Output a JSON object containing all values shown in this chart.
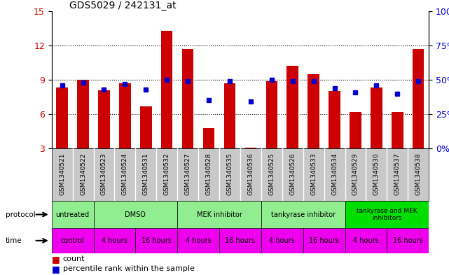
{
  "title": "GDS5029 / 242131_at",
  "samples": [
    "GSM1340521",
    "GSM1340522",
    "GSM1340523",
    "GSM1340524",
    "GSM1340531",
    "GSM1340532",
    "GSM1340527",
    "GSM1340528",
    "GSM1340535",
    "GSM1340536",
    "GSM1340525",
    "GSM1340526",
    "GSM1340533",
    "GSM1340534",
    "GSM1340529",
    "GSM1340530",
    "GSM1340537",
    "GSM1340538"
  ],
  "bar_heights": [
    8.3,
    9.0,
    8.1,
    8.7,
    6.7,
    13.3,
    11.7,
    4.8,
    8.7,
    3.1,
    8.9,
    10.2,
    9.5,
    8.0,
    6.2,
    8.3,
    6.2,
    11.7
  ],
  "blue_dot_percentile": [
    46,
    48,
    43,
    47,
    43,
    50,
    49,
    35,
    49,
    34,
    50,
    49,
    49,
    44,
    41,
    46,
    40,
    49
  ],
  "ylim_left": [
    3,
    15
  ],
  "ylim_right": [
    0,
    100
  ],
  "yticks_left": [
    3,
    6,
    9,
    12,
    15
  ],
  "yticks_right": [
    0,
    25,
    50,
    75,
    100
  ],
  "bar_color": "#CC0000",
  "dot_color": "#0000CC",
  "grid_color": "#000000",
  "protocol_color_light": "#90EE90",
  "protocol_color_dark": "#00DD00",
  "time_color": "#EE00EE",
  "sample_bg_color": "#C8C8C8",
  "tick_label_color_left": "#CC0000",
  "tick_label_color_right": "#0000CC",
  "protocol_data": [
    [
      0,
      1,
      "untreated",
      "#90EE90"
    ],
    [
      1,
      3,
      "DMSO",
      "#90EE90"
    ],
    [
      3,
      5,
      "MEK inhibitor",
      "#90EE90"
    ],
    [
      5,
      7,
      "tankyrase inhibitor",
      "#90EE90"
    ],
    [
      7,
      9,
      "tankyrase and MEK\ninhibitors",
      "#00DD00"
    ]
  ],
  "time_data": [
    [
      0,
      1,
      "control"
    ],
    [
      1,
      2,
      "4 hours"
    ],
    [
      2,
      3,
      "16 hours"
    ],
    [
      3,
      4,
      "4 hours"
    ],
    [
      4,
      5,
      "16 hours"
    ],
    [
      5,
      6,
      "4 hours"
    ],
    [
      6,
      7,
      "16 hours"
    ],
    [
      7,
      8,
      "4 hours"
    ],
    [
      8,
      9,
      "16 hours"
    ]
  ]
}
